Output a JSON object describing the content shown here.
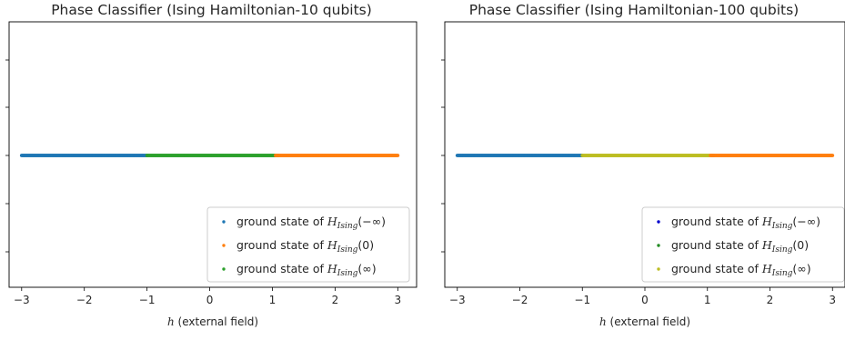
{
  "chart_data": [
    {
      "type": "scatter",
      "title": "Phase Classifier (Ising Hamiltonian-10 qubits)",
      "xlabel_var": "h",
      "xlabel_rest": " (external field)",
      "xlim": [
        -3.2,
        3.3
      ],
      "xticks": [
        -3,
        -2,
        -1,
        0,
        1,
        2,
        3
      ],
      "xtick_labels": [
        "−3",
        "−2",
        "−1",
        "0",
        "1",
        "2",
        "3"
      ],
      "y_value": 0,
      "grid": false,
      "legend_position": "lower right",
      "series": [
        {
          "label_prefix": "ground state of ",
          "label_math": "H",
          "label_sub": "Ising",
          "label_arg": "(−∞)",
          "color": "#1f77b4",
          "x_range": [
            -3.0,
            -1.0
          ]
        },
        {
          "label_prefix": "ground state of ",
          "label_math": "H",
          "label_sub": "Ising",
          "label_arg": "(0)",
          "color": "#ff7f0e",
          "x_range": [
            1.05,
            3.0
          ]
        },
        {
          "label_prefix": "ground state of ",
          "label_math": "H",
          "label_sub": "Ising",
          "label_arg": "(∞)",
          "color": "#2ca02c",
          "x_range": [
            -1.0,
            1.1
          ]
        }
      ]
    },
    {
      "type": "scatter",
      "title": "Phase Classifier (Ising Hamiltonian-100 qubits)",
      "xlabel_var": "h",
      "xlabel_rest": " (external field)",
      "xlim": [
        -3.2,
        3.2
      ],
      "xticks": [
        -3,
        -2,
        -1,
        0,
        1,
        2,
        3
      ],
      "xtick_labels": [
        "−3",
        "−2",
        "−1",
        "0",
        "1",
        "2",
        "3"
      ],
      "y_value": 0,
      "grid": false,
      "legend_position": "lower right",
      "series": [
        {
          "label_prefix": "ground state of ",
          "label_math": "H",
          "label_sub": "Ising",
          "label_arg": "(−∞)",
          "color": "#1f77b4",
          "marker_color": "#0000cc",
          "x_range": [
            -3.0,
            -1.0
          ]
        },
        {
          "label_prefix": "ground state of ",
          "label_math": "H",
          "label_sub": "Ising",
          "label_arg": "(0)",
          "color": "#ff7f0e",
          "marker_color": "#228b22",
          "x_range": [
            1.05,
            3.0
          ]
        },
        {
          "label_prefix": "ground state of ",
          "label_math": "H",
          "label_sub": "Ising",
          "label_arg": "(∞)",
          "color": "#bcbd22",
          "marker_color": "#bcbd22",
          "x_range": [
            -1.0,
            1.1
          ]
        }
      ]
    }
  ]
}
